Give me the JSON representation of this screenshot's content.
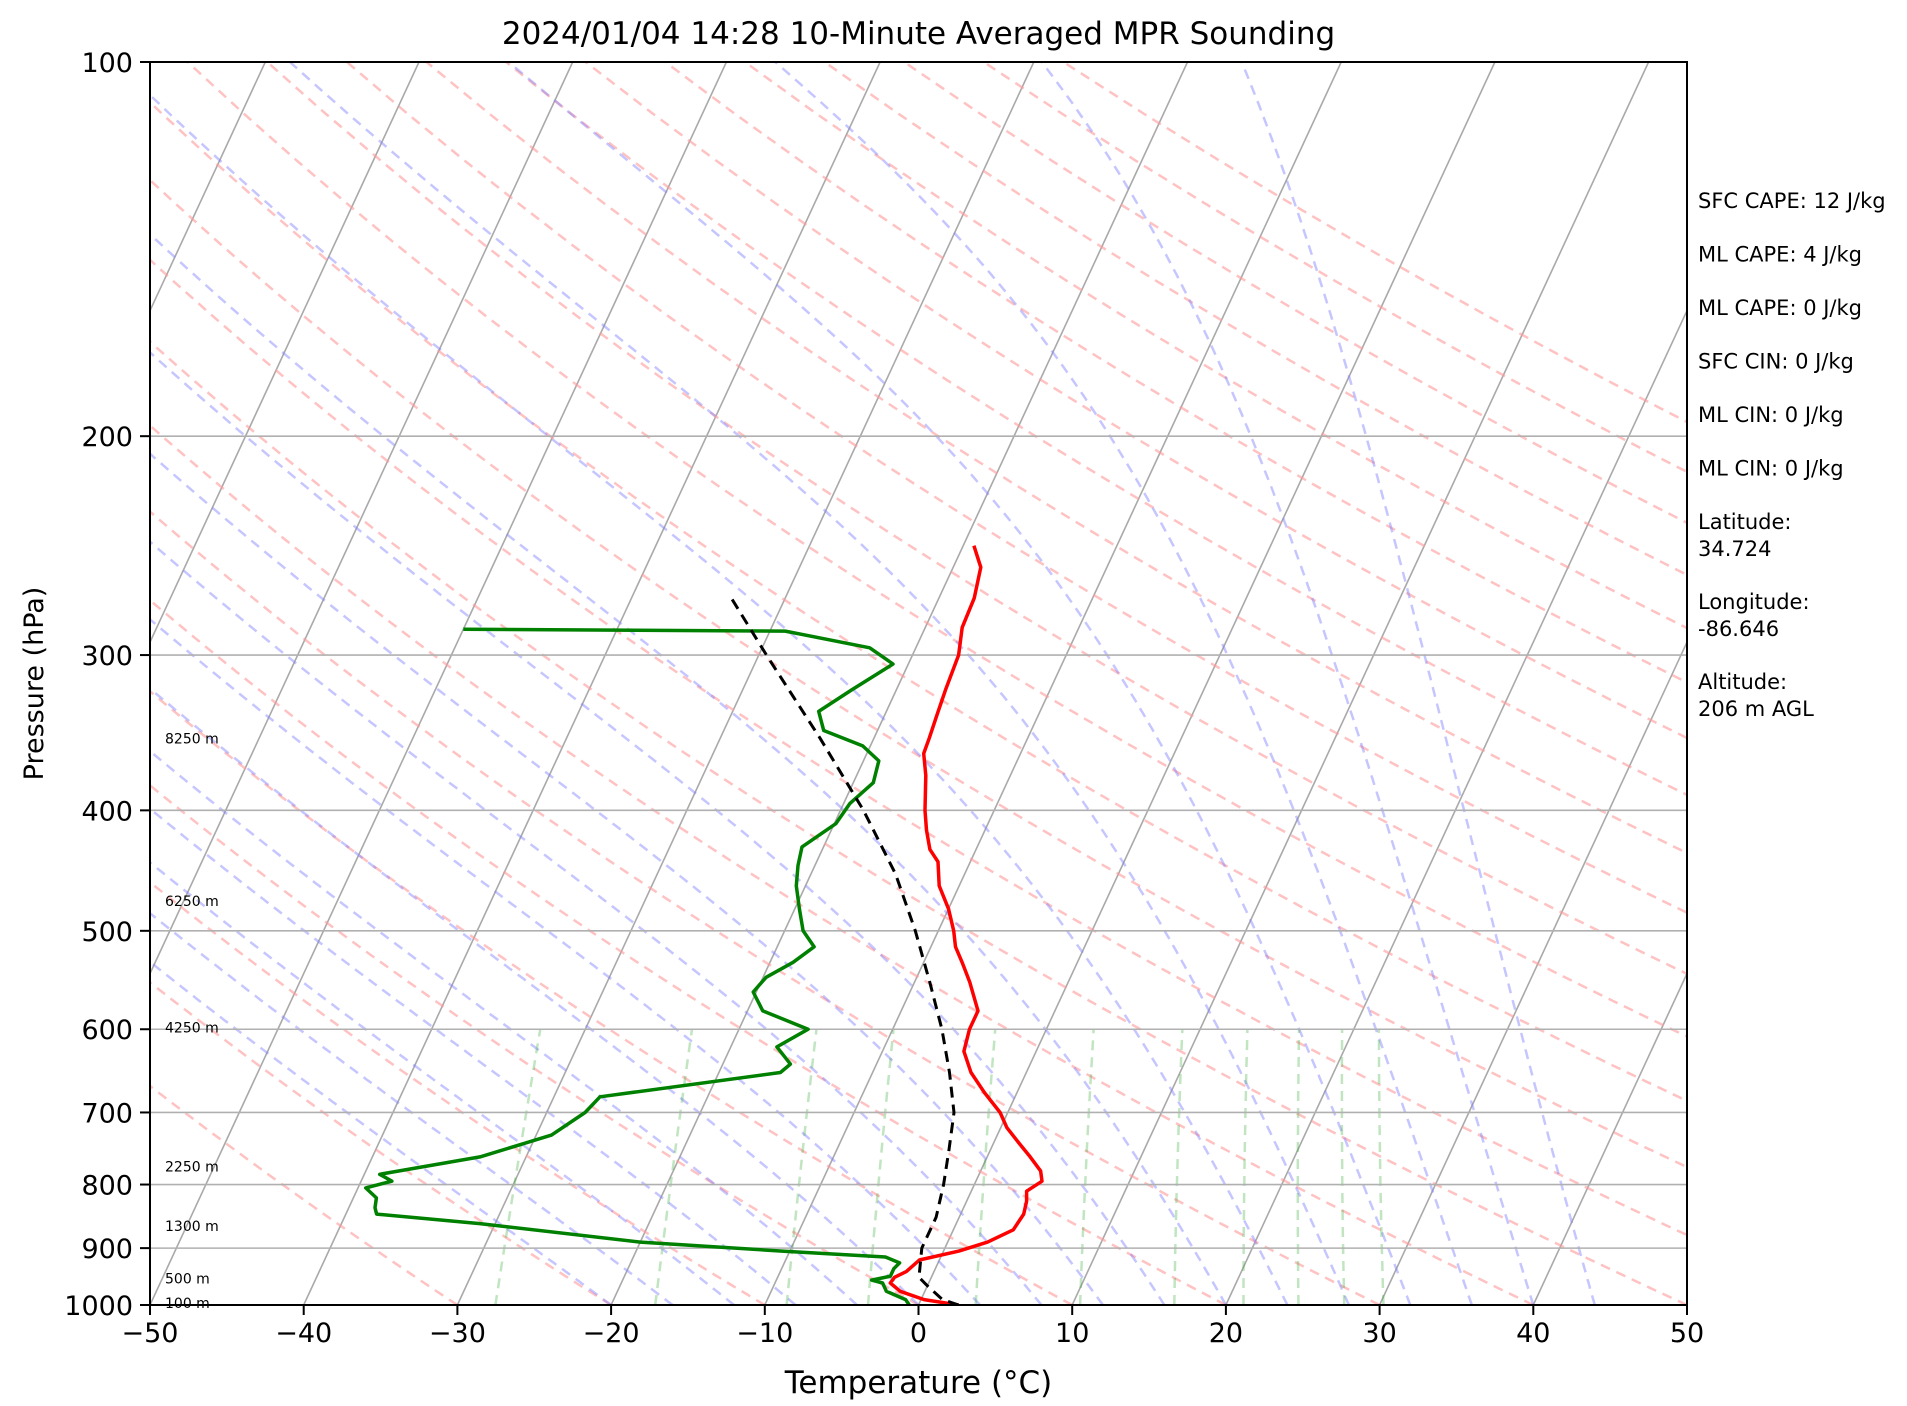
{
  "chart_data": {
    "type": "line",
    "title": "2024/01/04 14:28 10-Minute Averaged MPR Sounding",
    "xlabel": "Temperature (°C)",
    "ylabel": "Pressure (hPa)",
    "xlim": [
      -50,
      50
    ],
    "ylim": [
      1000,
      100
    ],
    "y_scale": "log",
    "x_ticks": [
      -50,
      -40,
      -30,
      -20,
      -10,
      0,
      10,
      20,
      30,
      40,
      50
    ],
    "x_tick_labels": [
      "−50",
      "−40",
      "−30",
      "−20",
      "−10",
      "0",
      "10",
      "20",
      "30",
      "40",
      "50"
    ],
    "y_ticks": [
      100,
      200,
      300,
      400,
      500,
      600,
      700,
      800,
      900,
      1000
    ],
    "y_tick_labels": [
      "100",
      "200",
      "300",
      "400",
      "500",
      "600",
      "700",
      "800",
      "900",
      "1000"
    ],
    "grid": "horizontal isobars at y ticks",
    "background_lines": {
      "isotherms": "skewed grey solid every 10 °C",
      "dry_adiabats": "dashed light red",
      "moist_adiabats": "dashed light blue",
      "mixing_ratio_lines": "dashed light green, 1000-600 hPa"
    },
    "series": [
      {
        "role": "temperature",
        "color": "#ff0000",
        "points": [
          [
            1000,
            2.6
          ],
          [
            990,
            0.2
          ],
          [
            975,
            -1.6
          ],
          [
            960,
            -2.5
          ],
          [
            950,
            -2.4
          ],
          [
            940,
            -1.8
          ],
          [
            920,
            -1.3
          ],
          [
            905,
            1.0
          ],
          [
            890,
            2.6
          ],
          [
            870,
            3.9
          ],
          [
            845,
            4.1
          ],
          [
            825,
            3.9
          ],
          [
            810,
            3.6
          ],
          [
            795,
            4.3
          ],
          [
            780,
            3.9
          ],
          [
            760,
            2.8
          ],
          [
            740,
            1.6
          ],
          [
            720,
            0.4
          ],
          [
            700,
            -0.5
          ],
          [
            675,
            -2.1
          ],
          [
            650,
            -3.6
          ],
          [
            625,
            -4.7
          ],
          [
            600,
            -5.0
          ],
          [
            580,
            -5.0
          ],
          [
            550,
            -6.4
          ],
          [
            530,
            -7.5
          ],
          [
            515,
            -8.4
          ],
          [
            500,
            -9.0
          ],
          [
            480,
            -10.0
          ],
          [
            460,
            -11.3
          ],
          [
            440,
            -12.1
          ],
          [
            430,
            -13.0
          ],
          [
            415,
            -13.8
          ],
          [
            400,
            -14.5
          ],
          [
            375,
            -15.5
          ],
          [
            360,
            -16.3
          ],
          [
            350,
            -16.4
          ],
          [
            335,
            -16.6
          ],
          [
            320,
            -16.8
          ],
          [
            300,
            -17.0
          ],
          [
            285,
            -17.6
          ],
          [
            270,
            -17.7
          ],
          [
            255,
            -18.2
          ],
          [
            245,
            -19.3
          ]
        ]
      },
      {
        "role": "dewpoint",
        "color": "#008000",
        "points": [
          [
            1000,
            -0.6
          ],
          [
            990,
            -1.0
          ],
          [
            975,
            -2.5
          ],
          [
            960,
            -3.0
          ],
          [
            955,
            -3.8
          ],
          [
            948,
            -2.7
          ],
          [
            935,
            -2.7
          ],
          [
            925,
            -2.5
          ],
          [
            915,
            -3.6
          ],
          [
            905,
            -10.5
          ],
          [
            890,
            -20.0
          ],
          [
            860,
            -31.0
          ],
          [
            845,
            -38.0
          ],
          [
            835,
            -38.3
          ],
          [
            820,
            -38.5
          ],
          [
            805,
            -39.5
          ],
          [
            795,
            -38.0
          ],
          [
            785,
            -39.0
          ],
          [
            760,
            -33.0
          ],
          [
            730,
            -29.0
          ],
          [
            700,
            -27.5
          ],
          [
            680,
            -27.0
          ],
          [
            650,
            -16.0
          ],
          [
            640,
            -15.6
          ],
          [
            620,
            -17.0
          ],
          [
            600,
            -15.5
          ],
          [
            580,
            -19.0
          ],
          [
            560,
            -20.2
          ],
          [
            545,
            -19.8
          ],
          [
            530,
            -18.5
          ],
          [
            515,
            -17.6
          ],
          [
            500,
            -18.8
          ],
          [
            480,
            -19.7
          ],
          [
            460,
            -20.6
          ],
          [
            443,
            -21.1
          ],
          [
            428,
            -21.4
          ],
          [
            410,
            -19.9
          ],
          [
            395,
            -19.6
          ],
          [
            380,
            -18.7
          ],
          [
            365,
            -19.0
          ],
          [
            355,
            -20.5
          ],
          [
            345,
            -23.5
          ],
          [
            333,
            -24.4
          ],
          [
            320,
            -22.9
          ],
          [
            305,
            -21.0
          ],
          [
            296,
            -23.0
          ],
          [
            287,
            -29.0
          ],
          [
            286,
            -50.0
          ]
        ]
      },
      {
        "role": "parcel",
        "color": "#000000",
        "dashed": true,
        "points": [
          [
            1000,
            2.6
          ],
          [
            990,
            1.4
          ],
          [
            965,
            0.0
          ],
          [
            950,
            -0.8
          ],
          [
            900,
            -1.5
          ],
          [
            850,
            -1.5
          ],
          [
            800,
            -2.0
          ],
          [
            750,
            -2.7
          ],
          [
            700,
            -3.5
          ],
          [
            650,
            -5.0
          ],
          [
            600,
            -6.8
          ],
          [
            550,
            -9.0
          ],
          [
            500,
            -11.5
          ],
          [
            450,
            -14.5
          ],
          [
            400,
            -18.5
          ],
          [
            350,
            -23.5
          ],
          [
            300,
            -29.5
          ],
          [
            270,
            -33.5
          ]
        ]
      }
    ],
    "height_labels": [
      {
        "text": "100 m",
        "p": 996
      },
      {
        "text": "500 m",
        "p": 952
      },
      {
        "text": "1300 m",
        "p": 864
      },
      {
        "text": "2250 m",
        "p": 774
      },
      {
        "text": "4250 m",
        "p": 598
      },
      {
        "text": "6250 m",
        "p": 473
      },
      {
        "text": "8250 m",
        "p": 350
      }
    ],
    "annotations": [
      "SFC CAPE: 12 J/kg",
      "ML CAPE: 4 J/kg",
      "ML CAPE: 0 J/kg",
      "SFC CIN: 0 J/kg",
      "ML CIN: 0 J/kg",
      "ML CIN: 0 J/kg",
      "Latitude:\n34.724",
      "Longitude:\n-86.646",
      "Altitude:\n206 m AGL"
    ]
  }
}
